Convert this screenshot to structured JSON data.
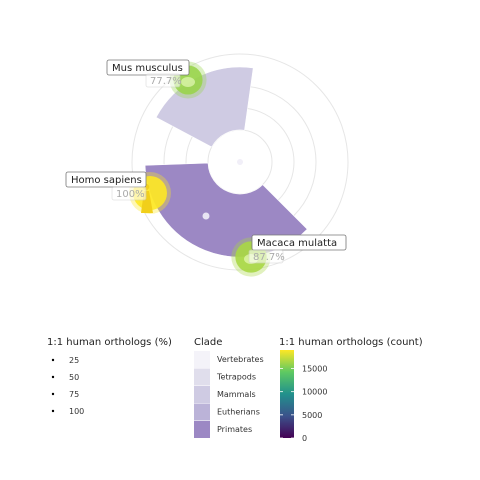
{
  "chart_data": {
    "type": "polar-bar",
    "species": [
      {
        "name": "Mus musculus",
        "percent_label": "77.7%",
        "ortholog_percent": 77.7,
        "ortholog_count": 16000,
        "icon": "mouse-silhouette-icon"
      },
      {
        "name": "Homo sapiens",
        "percent_label": "100%",
        "ortholog_percent": 100,
        "ortholog_count": 19000,
        "icon": "human-silhouette-icon"
      },
      {
        "name": "Macaca mulatta",
        "percent_label": "87.7%",
        "ortholog_percent": 87.7,
        "ortholog_count": 16500,
        "icon": "macaque-silhouette-icon"
      }
    ],
    "clade_levels": [
      "Vertebrates",
      "Tetrapods",
      "Mammals",
      "Eutherians",
      "Primates"
    ],
    "clade_colors": [
      "#f4f3f9",
      "#e0deec",
      "#cfcbe3",
      "#bbb3d8",
      "#9c88c4"
    ],
    "clade_wedges": [
      {
        "clade": "Mammals",
        "start_deg": -62,
        "end_deg": 8,
        "inner_radius": 32,
        "outer_radius": 95
      },
      {
        "clade": "Primates",
        "start_deg": 135,
        "end_deg": 268,
        "inner_radius": 32,
        "outer_radius": 95
      }
    ],
    "legends": {
      "size": {
        "title": "1:1 human orthologs (%)",
        "items": [
          "25",
          "50",
          "75",
          "100"
        ]
      },
      "clade": {
        "title": "Clade"
      },
      "count": {
        "title": "1:1 human orthologs (count)",
        "ticks": [
          "0",
          "5000",
          "10000",
          "15000"
        ],
        "range": [
          0,
          19000
        ]
      }
    },
    "colorscale": [
      "#440154",
      "#3b528b",
      "#21918c",
      "#5ec962",
      "#fde725"
    ],
    "grid": true
  }
}
